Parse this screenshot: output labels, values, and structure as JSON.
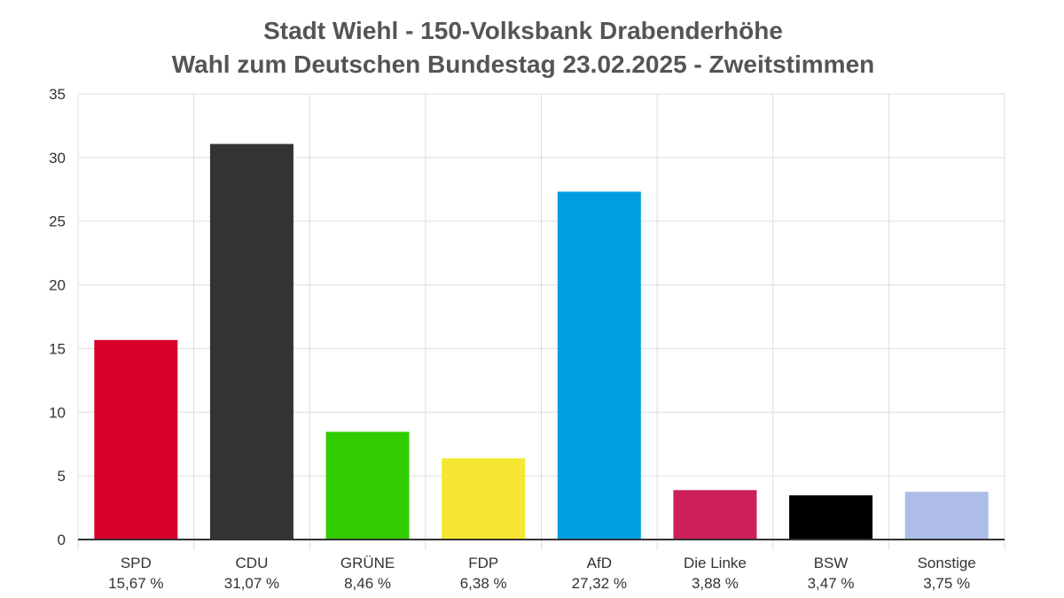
{
  "chart_data": {
    "type": "bar",
    "title": "Stadt Wiehl - 150-Volksbank Drabenderhöhe",
    "subtitle": "Wahl zum Deutschen Bundestag 23.02.2025  - Zweitstimmen",
    "xlabel": "",
    "ylabel": "",
    "ylim": [
      0,
      35
    ],
    "yticks": [
      0,
      5,
      10,
      15,
      20,
      25,
      30,
      35
    ],
    "grid": true,
    "legend": "none",
    "categories": [
      "SPD",
      "CDU",
      "GRÜNE",
      "FDP",
      "AfD",
      "Die Linke",
      "BSW",
      "Sonstige"
    ],
    "values": [
      15.67,
      31.07,
      8.46,
      6.38,
      27.32,
      3.88,
      3.47,
      3.75
    ],
    "value_labels": [
      "15,67 %",
      "31,07 %",
      "8,46 %",
      "6,38 %",
      "27,32 %",
      "3,88 %",
      "3,47 %",
      "3,75 %"
    ],
    "colors": [
      "#d6002a",
      "#333333",
      "#33cc00",
      "#f5e632",
      "#009ee0",
      "#cc1f5c",
      "#000000",
      "#adbde8"
    ]
  }
}
